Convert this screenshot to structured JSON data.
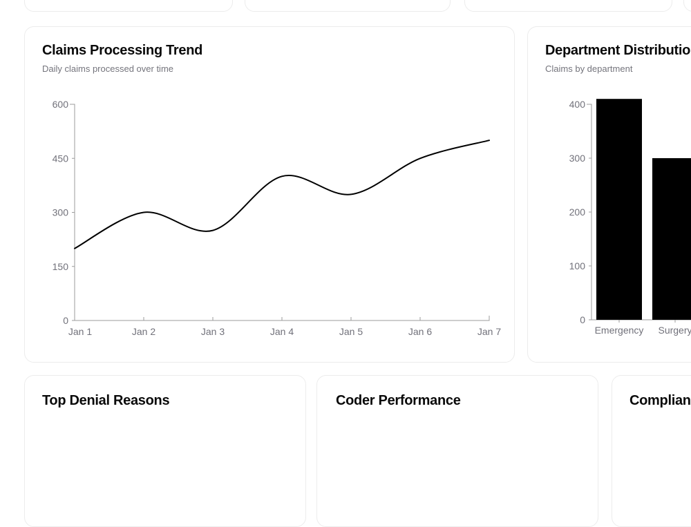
{
  "theme": {
    "background": "#ffffff",
    "card_border": "#ececec",
    "title_color": "#0a0a0a",
    "subtitle_color": "#74747c",
    "axis_text_color": "#71717a",
    "axis_line_color": "#9b9b9b",
    "series_color": "#000000"
  },
  "cards": {
    "claims_trend": {
      "title": "Claims Processing Trend",
      "subtitle": "Daily claims processed over time"
    },
    "department_distribution": {
      "title": "Department Distribution",
      "subtitle": "Claims by department",
      "clipped_at_right": true
    },
    "top_denial_reasons": {
      "title": "Top Denial Reasons"
    },
    "coder_performance": {
      "title": "Coder Performance"
    },
    "compliance": {
      "title": "Compliance",
      "clipped_at_right": true
    }
  },
  "chart_data": [
    {
      "type": "line",
      "title": "Claims Processing Trend",
      "subtitle": "Daily claims processed over time",
      "x": [
        "Jan 1",
        "Jan 2",
        "Jan 3",
        "Jan 4",
        "Jan 5",
        "Jan 6",
        "Jan 7"
      ],
      "values": [
        200,
        300,
        250,
        400,
        350,
        450,
        500
      ],
      "xlabel": "",
      "ylabel": "",
      "ylim": [
        0,
        600
      ],
      "yticks": [
        0,
        150,
        300,
        450,
        600
      ],
      "grid": false,
      "legend": false,
      "curve": "smooth",
      "line_color": "#000000"
    },
    {
      "type": "bar",
      "title": "Department Distribution",
      "subtitle": "Claims by department",
      "categories": [
        "Emergency",
        "Surgery"
      ],
      "values": [
        410,
        300
      ],
      "xlabel": "",
      "ylabel": "",
      "ylim": [
        0,
        400
      ],
      "yticks": [
        0,
        100,
        200,
        300,
        400
      ],
      "grid": false,
      "legend": false,
      "bar_color": "#000000",
      "clipped_at_right": true
    }
  ]
}
